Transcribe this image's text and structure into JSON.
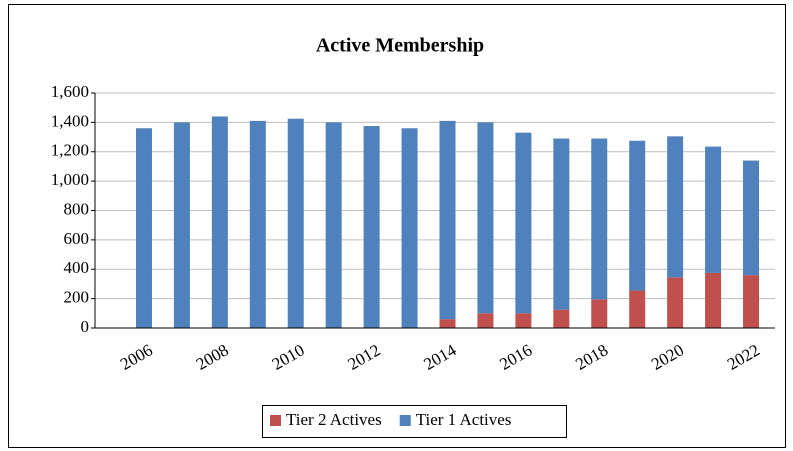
{
  "chart_data": {
    "type": "stacked_bar",
    "title": "Active Membership",
    "categories": [
      "2006",
      null,
      "2008",
      null,
      "2010",
      null,
      "2012",
      null,
      "2014",
      null,
      "2016",
      null,
      "2018",
      null,
      "2020",
      null,
      "2022"
    ],
    "series": [
      {
        "name": "Tier 2 Actives",
        "color": "#c0504d",
        "values": [
          0,
          0,
          0,
          0,
          0,
          0,
          0,
          0,
          60,
          100,
          100,
          125,
          195,
          255,
          345,
          375,
          360
        ]
      },
      {
        "name": "Tier 1 Actives",
        "color": "#4f81bd",
        "values": [
          1360,
          1400,
          1440,
          1410,
          1425,
          1400,
          1375,
          1360,
          1350,
          1300,
          1230,
          1165,
          1095,
          1020,
          960,
          860,
          780
        ]
      }
    ],
    "ylim": [
      0,
      1600
    ],
    "yticks": [
      0,
      200,
      400,
      600,
      800,
      {
        "value": 1000,
        "label": "1,000"
      },
      {
        "value": 1200,
        "label": "1,200"
      },
      {
        "value": 1400,
        "label": "1,400"
      },
      {
        "value": 1600,
        "label": "1,600"
      }
    ],
    "grid": true,
    "legend": "bottom"
  }
}
